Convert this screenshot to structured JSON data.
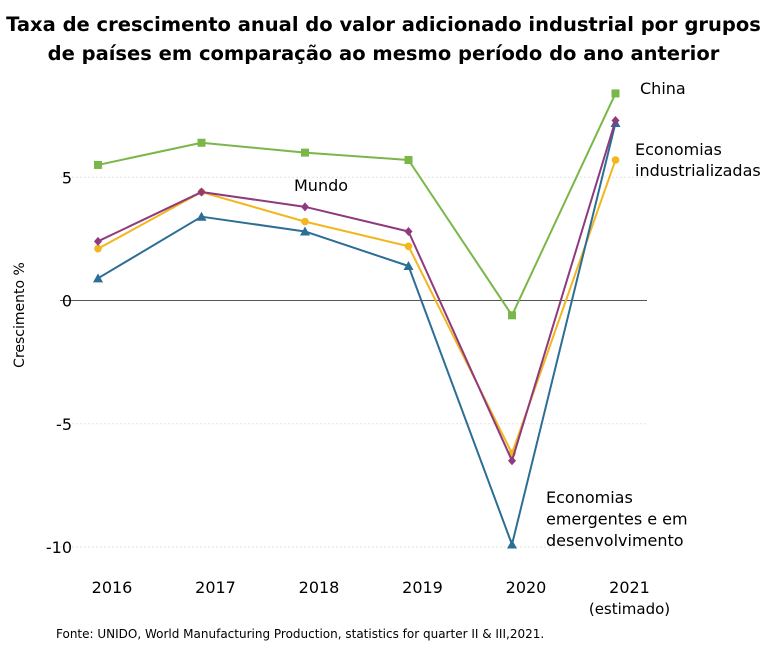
{
  "chart_data": {
    "type": "line",
    "title_lines": [
      "Taxa de crescimento anual do valor adicionado industrial por grupos",
      "de países em comparação ao mesmo período do ano anterior"
    ],
    "ylabel": "Crescimento %",
    "xlabel": "",
    "categories": [
      "2016",
      "2017",
      "2018",
      "2019",
      "2020",
      "2021"
    ],
    "category_sublabels": [
      "",
      "",
      "",
      "",
      "",
      "(estimado)"
    ],
    "ylim": [
      -10.5,
      8.5
    ],
    "yticks": [
      5,
      0,
      -5,
      -10
    ],
    "ytick_labels": [
      "5",
      "0",
      "-5",
      "-10"
    ],
    "grid": "horizontal dotted",
    "series": [
      {
        "name": "China",
        "label_lines": [
          "China"
        ],
        "color": "#7ab648",
        "marker": "square",
        "values": [
          5.5,
          6.4,
          6.0,
          5.7,
          -0.6,
          8.4
        ]
      },
      {
        "name": "Economias industrializadas",
        "label_lines": [
          "Economias",
          "industrializadas"
        ],
        "color": "#f2b61e",
        "marker": "circle",
        "values": [
          2.1,
          4.4,
          3.2,
          2.2,
          -6.2,
          5.7
        ]
      },
      {
        "name": "Mundo",
        "label_lines": [
          "Mundo"
        ],
        "color": "#8e3a7e",
        "marker": "diamond",
        "values": [
          2.4,
          4.4,
          3.8,
          2.8,
          -6.5,
          7.3
        ]
      },
      {
        "name": "Economias emergentes e em desenvolvimento",
        "label_lines": [
          "Economias",
          "emergentes e em",
          "desenvolvimento"
        ],
        "color": "#2c6e96",
        "marker": "triangle",
        "values": [
          0.9,
          3.4,
          2.8,
          1.4,
          -9.9,
          7.2
        ]
      }
    ]
  },
  "source": "Fonte: UNIDO, World Manufacturing Production, statistics for quarter II & III,2021."
}
